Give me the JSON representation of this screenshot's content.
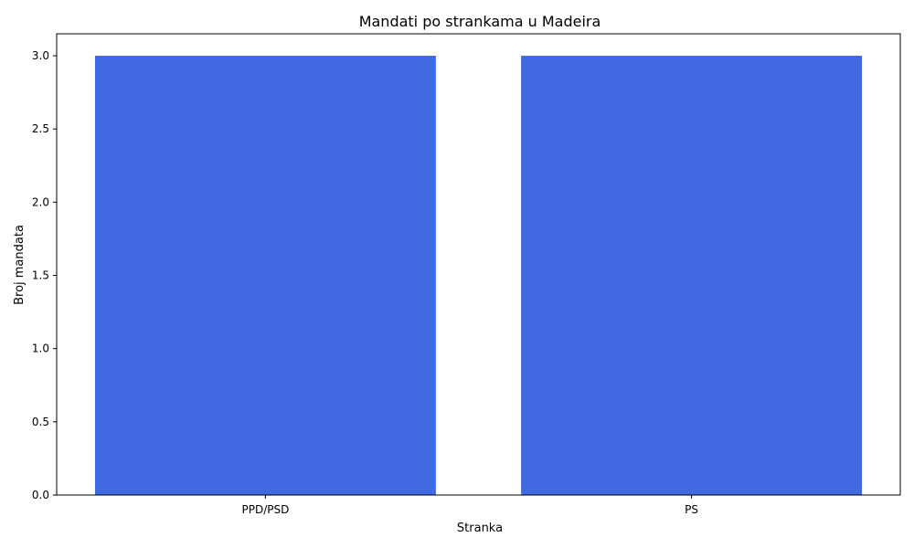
{
  "chart_data": {
    "type": "bar",
    "title": "Mandati po strankama u Madeira",
    "xlabel": "Stranka",
    "ylabel": "Broj mandata",
    "categories": [
      "PPD/PSD",
      "PS"
    ],
    "values": [
      3,
      3
    ],
    "ylim": [
      0,
      3.15
    ],
    "yticks": [
      0.0,
      0.5,
      1.0,
      1.5,
      2.0,
      2.5,
      3.0
    ],
    "ytick_labels": [
      "0.0",
      "0.5",
      "1.0",
      "1.5",
      "2.0",
      "2.5",
      "3.0"
    ],
    "bar_color": "#4169E1",
    "grid": false,
    "legend": "none"
  }
}
